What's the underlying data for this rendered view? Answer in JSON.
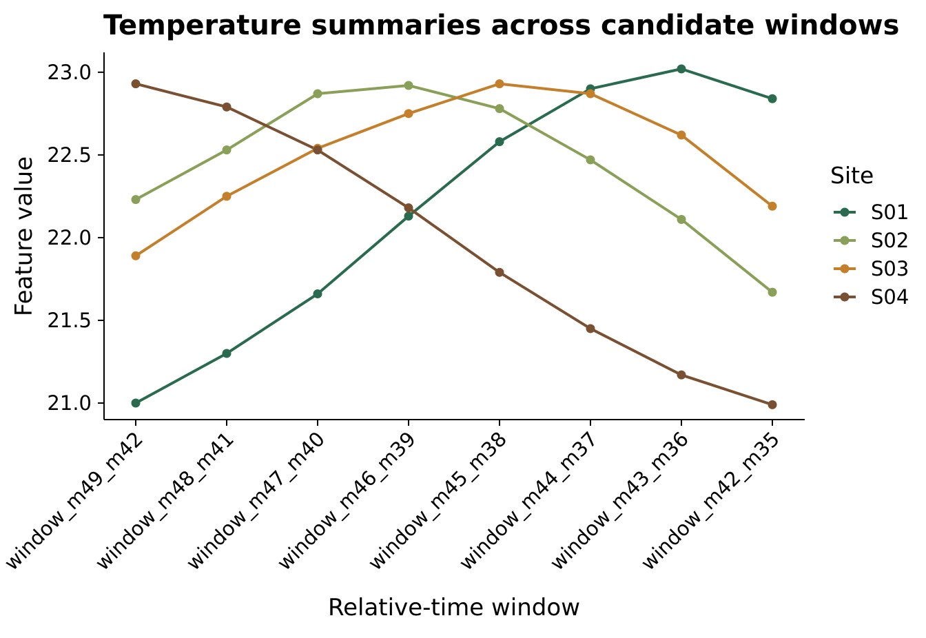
{
  "chart_data": {
    "type": "line",
    "title": "Temperature summaries across candidate windows",
    "xlabel": "Relative-time window",
    "ylabel": "Feature value",
    "categories": [
      "window_m49_m42",
      "window_m48_m41",
      "window_m47_m40",
      "window_m46_m39",
      "window_m45_m38",
      "window_m44_m37",
      "window_m43_m36",
      "window_m42_m35"
    ],
    "y_ticks": [
      "21.0",
      "21.5",
      "22.0",
      "22.5",
      "23.0"
    ],
    "ylim": [
      20.9,
      23.12
    ],
    "grid": false,
    "legend": {
      "title": "Site",
      "placement": "right"
    },
    "series": [
      {
        "name": "S01",
        "color": "#2a6b50",
        "values": [
          21.0,
          21.3,
          21.66,
          22.13,
          22.58,
          22.9,
          23.02,
          22.84
        ]
      },
      {
        "name": "S02",
        "color": "#8a9f57",
        "values": [
          22.23,
          22.53,
          22.87,
          22.92,
          22.78,
          22.47,
          22.11,
          21.67
        ]
      },
      {
        "name": "S03",
        "color": "#c47f2a",
        "values": [
          21.89,
          22.25,
          22.54,
          22.75,
          22.93,
          22.87,
          22.62,
          22.19
        ]
      },
      {
        "name": "S04",
        "color": "#7a5033",
        "values": [
          22.93,
          22.79,
          22.53,
          22.18,
          21.79,
          21.45,
          21.17,
          20.99
        ]
      }
    ]
  }
}
